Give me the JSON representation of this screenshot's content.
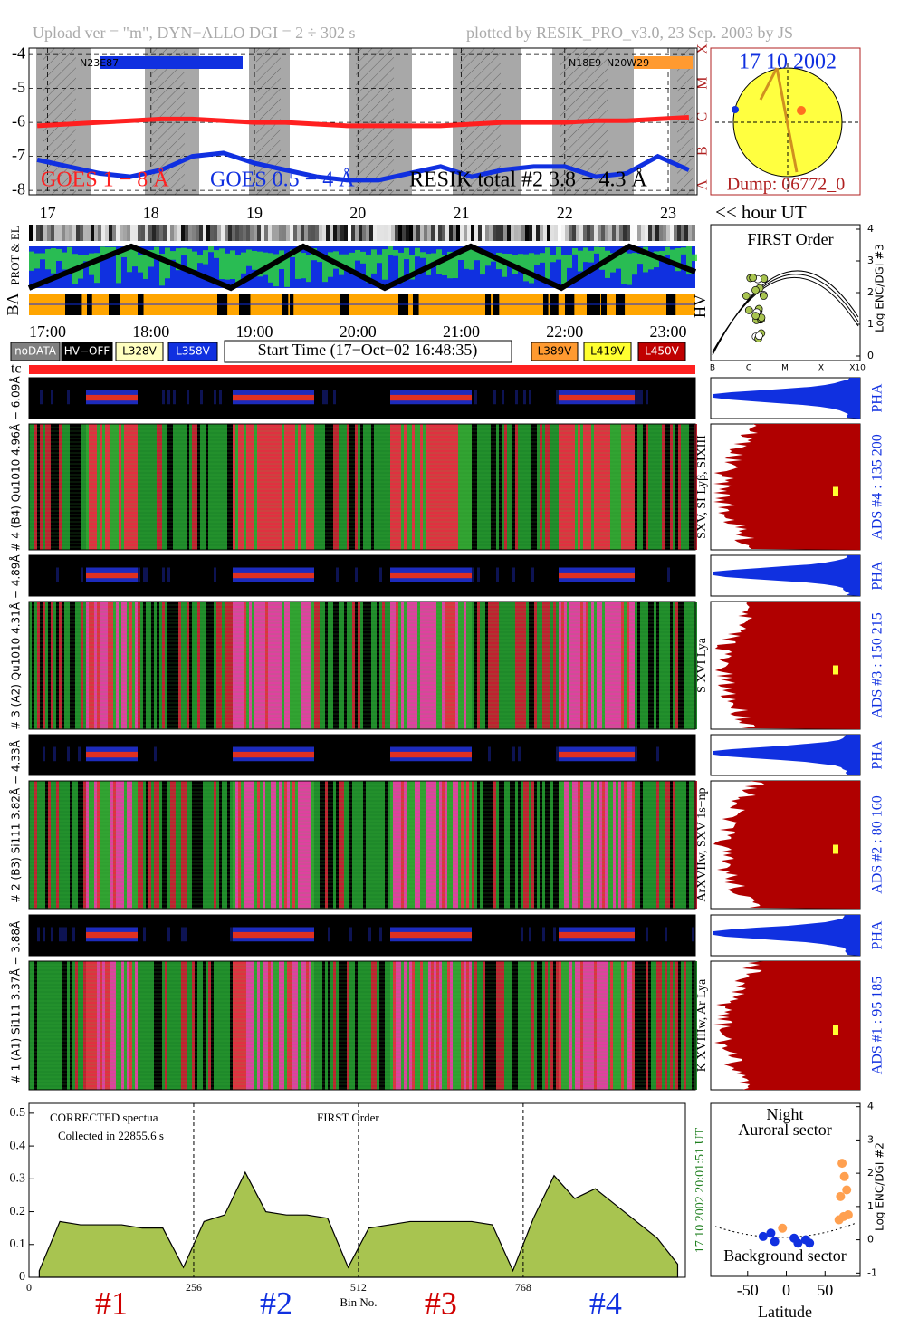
{
  "header": {
    "left": "Upload ver = \"m\", DYN−ALLO DGI =   2 ÷ 302 s",
    "right": "plotted by RESIK_PRO_v3.0, 23 Sep. 2003 by JS"
  },
  "goes": {
    "ylim": [
      -8.13,
      -3.81
    ],
    "yticks": [
      -4,
      -5,
      -6,
      -7,
      -8
    ],
    "xlim": [
      16.82,
      23.28
    ],
    "classes": [
      "X",
      "M",
      "C",
      "B",
      "A"
    ],
    "regions": [
      "N23E87",
      "N18E9",
      "N20W29"
    ],
    "x": [
      16.9,
      17.2,
      17.5,
      17.8,
      18.1,
      18.4,
      18.7,
      19.0,
      19.3,
      19.6,
      19.9,
      20.2,
      20.5,
      20.8,
      21.1,
      21.4,
      21.7,
      22.0,
      22.3,
      22.6,
      22.9,
      23.2
    ],
    "series": [
      {
        "name": "GOES 1 − 8 Å",
        "color": "#ff2020",
        "values": [
          -6.1,
          -6.05,
          -6.0,
          -5.95,
          -5.9,
          -5.9,
          -5.95,
          -6.0,
          -6.0,
          -6.05,
          -6.1,
          -6.1,
          -6.1,
          -6.1,
          -6.05,
          -6.0,
          -6.0,
          -6.0,
          -5.95,
          -5.95,
          -5.9,
          -5.85
        ]
      },
      {
        "name": "GOES 0.5 − 4 Å",
        "color": "#1030e0",
        "values": [
          -7.1,
          -7.3,
          -7.5,
          -7.6,
          -7.4,
          -7.0,
          -6.9,
          -7.2,
          -7.4,
          -7.6,
          -7.7,
          -7.7,
          -7.5,
          -7.3,
          -7.6,
          -7.4,
          -7.3,
          -7.3,
          -7.6,
          -7.5,
          -7.0,
          -7.4
        ]
      },
      {
        "name": "RESIK total #2  3.8 − 4.3 Å",
        "color": "#000000"
      }
    ]
  },
  "sun": {
    "date": "17 10 2002",
    "dump": "Dump: 06772_0"
  },
  "hours": {
    "ticks": [
      17,
      18,
      19,
      20,
      21,
      22,
      23
    ],
    "label": "<< hour UT",
    "clock": [
      "17:00",
      "18:00",
      "19:00",
      "20:00",
      "21:00",
      "22:00",
      "23:00"
    ]
  },
  "strips": {
    "prot": "PROT & EL",
    "ba": "BA",
    "hv": "HV",
    "tc": "tc"
  },
  "hv_legend": [
    {
      "label": "noDATA",
      "color": "#808080"
    },
    {
      "label": "HV−OFF",
      "color": "#000000"
    },
    {
      "label": "L328V",
      "color": "#ffffc0"
    },
    {
      "label": "L358V",
      "color": "#1030e0"
    },
    {
      "label": "L389V",
      "color": "#ff9a30"
    },
    {
      "label": "L419V",
      "color": "#ffff30"
    },
    {
      "label": "L450V",
      "color": "#c00000"
    }
  ],
  "start_time": "Start Time (17−Oct−02 16:48:35)",
  "first_order": {
    "title": "FIRST Order",
    "ylabel": "Log ENC/DGI #3",
    "yticks": [
      0,
      1,
      2,
      3,
      4
    ],
    "xticks": [
      "B",
      "C",
      "M",
      "X",
      "X10"
    ]
  },
  "pha_label": "PHA",
  "channels": [
    {
      "range": "# 4 (B4) Qu1010 4.96Å − 6.09Å",
      "lines": "SXV, SI Lyβ, SIXIII",
      "ads": "ADS #4 :   135 200"
    },
    {
      "range": "# 3 (A2) Qu1010  4.31Å − 4.89Å",
      "lines": "S XVI Lya",
      "ads": "ADS #3 :   150 215"
    },
    {
      "range": "# 2 (B3) Si111  3.82Å − 4.33Å",
      "lines": "ArXVIIw, SXV 1s−np",
      "ads": "ADS #2 :   80 160"
    },
    {
      "range": "# 1 (A1) Si111  3.37Å − 3.88Å",
      "lines": "K XVIIIw, Ar Lya",
      "ads": "ADS #1 :   95 185"
    }
  ],
  "spectrum": {
    "notes": [
      "CORRECTED spectua",
      "Collected in 22855.6 s",
      "FIRST Order"
    ],
    "timestamp": "17 10 2002   20:01:51 UT",
    "xlabel": "Bin No.",
    "detectors": [
      "#1",
      "#2",
      "#3",
      "#4"
    ],
    "xlim": [
      0,
      1020
    ],
    "xticks": [
      0,
      256,
      512,
      768
    ],
    "ylim": [
      0,
      0.53
    ],
    "yticks": [
      0,
      0.1,
      0.2,
      0.3,
      0.4,
      0.5
    ],
    "color": "#a8c450",
    "x": [
      16,
      48,
      80,
      112,
      144,
      176,
      208,
      240,
      272,
      304,
      336,
      368,
      400,
      432,
      464,
      496,
      528,
      560,
      592,
      624,
      656,
      688,
      720,
      752,
      784,
      816,
      848,
      880,
      912,
      944,
      976,
      1008
    ],
    "values": [
      0.02,
      0.17,
      0.16,
      0.16,
      0.16,
      0.15,
      0.15,
      0.03,
      0.17,
      0.19,
      0.32,
      0.2,
      0.19,
      0.19,
      0.18,
      0.03,
      0.15,
      0.16,
      0.17,
      0.17,
      0.17,
      0.17,
      0.16,
      0.02,
      0.18,
      0.31,
      0.24,
      0.27,
      0.22,
      0.17,
      0.12,
      0.04
    ]
  },
  "latitude": {
    "titles": [
      "Night",
      "Auroral sector",
      "Background sector"
    ],
    "xlabel": "Latitude",
    "ylabel": "Log ENC/DGI #2",
    "xlim": [
      -97.7,
      95.3
    ],
    "xticks": [
      -50,
      0,
      50
    ],
    "ylim": [
      -1.1,
      4.1
    ],
    "yticks": [
      -1,
      0,
      1,
      2,
      3,
      4
    ],
    "series": [
      {
        "color": "#ffa050",
        "lat": [
          72,
          75,
          78,
          70,
          74,
          80,
          68,
          -5
        ],
        "values": [
          2.3,
          1.9,
          1.5,
          1.3,
          0.7,
          0.75,
          0.6,
          0.35
        ]
      },
      {
        "color": "#1030e0",
        "lat": [
          -30,
          -20,
          -15,
          10,
          15,
          25,
          30
        ],
        "values": [
          0.1,
          0.2,
          -0.05,
          0.05,
          -0.1,
          0.0,
          -0.1
        ]
      }
    ]
  }
}
